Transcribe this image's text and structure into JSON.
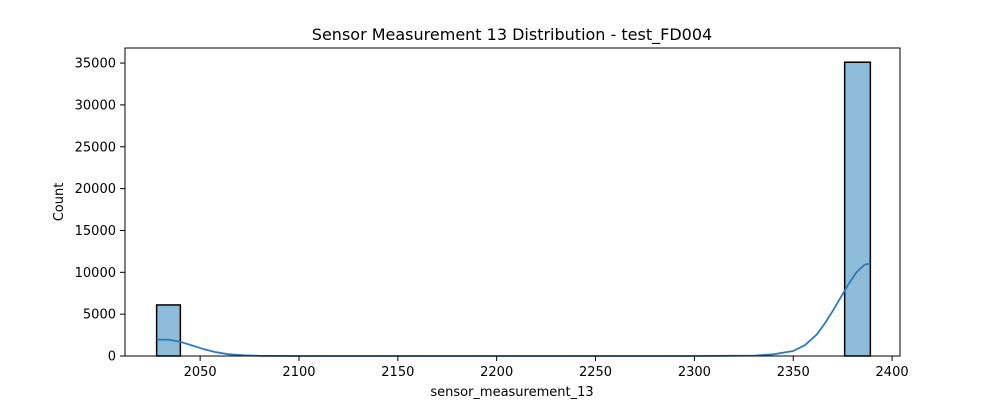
{
  "chart_data": {
    "type": "bar",
    "title": "Sensor Measurement 13 Distribution - test_FD004",
    "xlabel": "sensor_measurement_13",
    "ylabel": "Count",
    "xlim": [
      2012,
      2404
    ],
    "ylim": [
      0,
      36800
    ],
    "xticks": [
      2050,
      2100,
      2150,
      2200,
      2250,
      2300,
      2350,
      2400
    ],
    "yticks": [
      0,
      5000,
      10000,
      15000,
      20000,
      25000,
      30000,
      35000
    ],
    "bins": [
      {
        "x0": 2028,
        "x1": 2040,
        "count": 6100
      },
      {
        "x0": 2376,
        "x1": 2389,
        "count": 35100
      }
    ],
    "kde": {
      "x": [
        2028,
        2034,
        2040,
        2046,
        2052,
        2058,
        2064,
        2072,
        2080,
        2100,
        2150,
        2200,
        2250,
        2300,
        2330,
        2340,
        2350,
        2356,
        2362,
        2366,
        2370,
        2374,
        2378,
        2382,
        2386,
        2389
      ],
      "y": [
        1950,
        1950,
        1700,
        1250,
        800,
        450,
        220,
        80,
        20,
        0,
        0,
        0,
        0,
        0,
        50,
        200,
        600,
        1300,
        2600,
        3900,
        5400,
        7000,
        8600,
        10000,
        10900,
        11050
      ]
    },
    "colors": {
      "bar_fill": "#8fbbda",
      "bar_edge": "#000000",
      "kde_line": "#2f7bb8"
    }
  }
}
